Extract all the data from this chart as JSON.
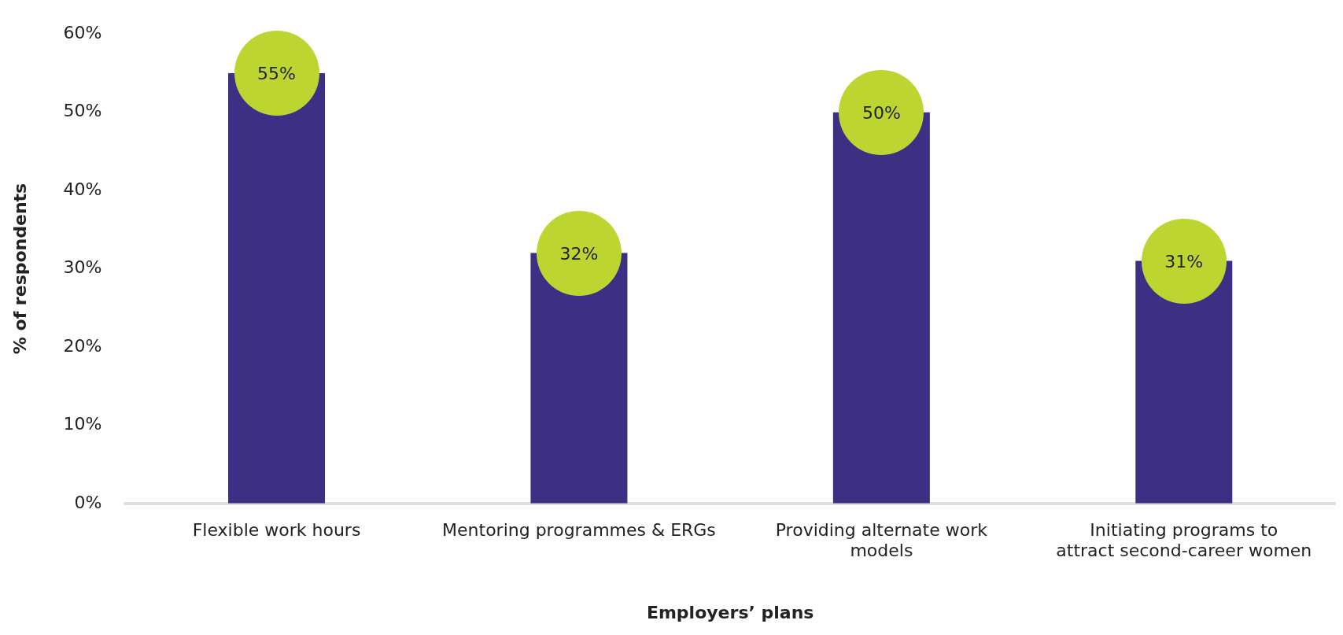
{
  "chart_data": {
    "type": "bar",
    "xlabel": "Employers’ plans",
    "ylabel": "% of respondents",
    "categories": [
      "Flexible work hours",
      "Mentoring programmes & ERGs",
      "Providing alternate work models",
      "Initiating programs to attract second-career women"
    ],
    "values": [
      55,
      32,
      50,
      31
    ],
    "color": "#3d2f84",
    "ylim": [
      0,
      60
    ],
    "yticks": [
      {
        "value": 0,
        "label": "0%"
      },
      {
        "value": 10,
        "label": "10%"
      },
      {
        "value": 20,
        "label": "20%"
      },
      {
        "value": 30,
        "label": "30%"
      },
      {
        "value": 40,
        "label": "40%"
      },
      {
        "value": 50,
        "label": "50%"
      },
      {
        "value": 60,
        "label": "60%"
      }
    ],
    "value_labels": [
      "55%",
      "32%",
      "50%",
      "31%"
    ],
    "grid": false,
    "legend": false
  }
}
